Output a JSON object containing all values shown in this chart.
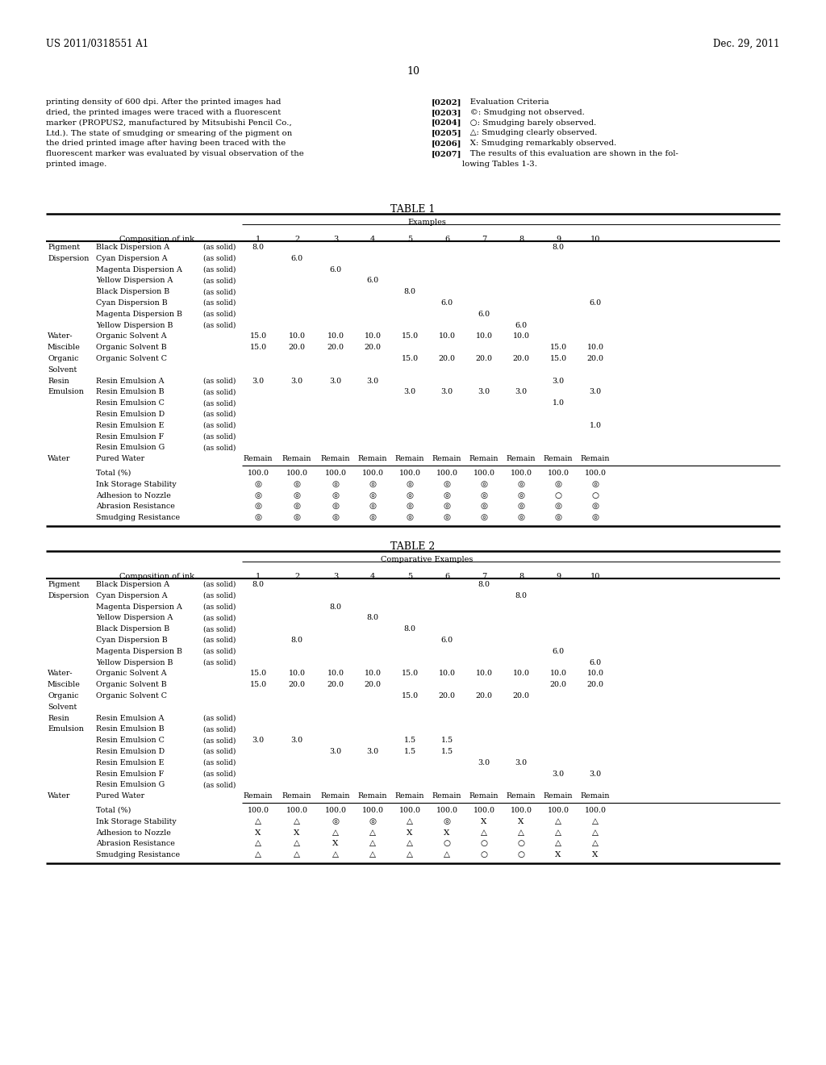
{
  "header_left": "US 2011/0318551 A1",
  "header_right": "Dec. 29, 2011",
  "page_number": "10",
  "body_text_left": "printing density of 600 dpi. After the printed images had\ndried, the printed images were traced with a fluorescent\nmarker (PROPUS2, manufactured by Mitsubishi Pencil Co.,\nLtd.). The state of smudging or smearing of the pigment on\nthe dried printed image after having been traced with the\nfluorescent marker was evaluated by visual observation of the\nprinted image.",
  "body_text_right": "[0202]   Evaluation Criteria\n[0203]   ©: Smudging not observed.\n[0204]   ○: Smudging barely observed.\n[0205]   △: Smudging clearly observed.\n[0206]   X: Smudging remarkably observed.\n[0207]   The results of this evaluation are shown in the fol-\nlowing Tables 1-3.",
  "table1_title": "TABLE 1",
  "table2_title": "TABLE 2",
  "background_color": "#ffffff",
  "text_color": "#000000",
  "t1_rows": [
    [
      "Pigment",
      "Black Dispersion A",
      "(as solid)",
      [
        8.0,
        null,
        null,
        null,
        null,
        null,
        null,
        null,
        8.0,
        null
      ]
    ],
    [
      "Dispersion",
      "Cyan Dispersion A",
      "(as solid)",
      [
        null,
        6.0,
        null,
        null,
        null,
        null,
        null,
        null,
        null,
        null
      ]
    ],
    [
      "",
      "Magenta Dispersion A",
      "(as solid)",
      [
        null,
        null,
        6.0,
        null,
        null,
        null,
        null,
        null,
        null,
        null
      ]
    ],
    [
      "",
      "Yellow Dispersion A",
      "(as solid)",
      [
        null,
        null,
        null,
        6.0,
        null,
        null,
        null,
        null,
        null,
        null
      ]
    ],
    [
      "",
      "Black Dispersion B",
      "(as solid)",
      [
        null,
        null,
        null,
        null,
        8.0,
        null,
        null,
        null,
        null,
        null
      ]
    ],
    [
      "",
      "Cyan Dispersion B",
      "(as solid)",
      [
        null,
        null,
        null,
        null,
        null,
        6.0,
        null,
        null,
        null,
        6.0
      ]
    ],
    [
      "",
      "Magenta Dispersion B",
      "(as solid)",
      [
        null,
        null,
        null,
        null,
        null,
        null,
        6.0,
        null,
        null,
        null
      ]
    ],
    [
      "",
      "Yellow Dispersion B",
      "(as solid)",
      [
        null,
        null,
        null,
        null,
        null,
        null,
        null,
        6.0,
        null,
        null
      ]
    ],
    [
      "Water-",
      "Organic Solvent A",
      "",
      [
        15.0,
        10.0,
        10.0,
        10.0,
        15.0,
        10.0,
        10.0,
        10.0,
        null,
        null
      ]
    ],
    [
      "Miscible",
      "Organic Solvent B",
      "",
      [
        15.0,
        20.0,
        20.0,
        20.0,
        null,
        null,
        null,
        null,
        15.0,
        10.0
      ]
    ],
    [
      "Organic",
      "Organic Solvent C",
      "",
      [
        null,
        null,
        null,
        null,
        15.0,
        20.0,
        20.0,
        20.0,
        15.0,
        20.0
      ]
    ],
    [
      "Solvent",
      "",
      "",
      [
        null,
        null,
        null,
        null,
        null,
        null,
        null,
        null,
        null,
        null
      ]
    ],
    [
      "Resin",
      "Resin Emulsion A",
      "(as solid)",
      [
        3.0,
        3.0,
        3.0,
        3.0,
        null,
        null,
        null,
        null,
        3.0,
        null
      ]
    ],
    [
      "Emulsion",
      "Resin Emulsion B",
      "(as solid)",
      [
        null,
        null,
        null,
        null,
        3.0,
        3.0,
        3.0,
        3.0,
        null,
        3.0
      ]
    ],
    [
      "",
      "Resin Emulsion C",
      "(as solid)",
      [
        null,
        null,
        null,
        null,
        null,
        null,
        null,
        null,
        1.0,
        null
      ]
    ],
    [
      "",
      "Resin Emulsion D",
      "(as solid)",
      [
        null,
        null,
        null,
        null,
        null,
        null,
        null,
        null,
        null,
        null
      ]
    ],
    [
      "",
      "Resin Emulsion E",
      "(as solid)",
      [
        null,
        null,
        null,
        null,
        null,
        null,
        null,
        null,
        null,
        1.0
      ]
    ],
    [
      "",
      "Resin Emulsion F",
      "(as solid)",
      [
        null,
        null,
        null,
        null,
        null,
        null,
        null,
        null,
        null,
        null
      ]
    ],
    [
      "",
      "Resin Emulsion G",
      "(as solid)",
      [
        null,
        null,
        null,
        null,
        null,
        null,
        null,
        null,
        null,
        null
      ]
    ],
    [
      "Water",
      "Pured Water",
      "",
      [
        "R",
        "R",
        "R",
        "R",
        "R",
        "R",
        "R",
        "R",
        "R",
        "R"
      ]
    ]
  ],
  "t1_bot": [
    [
      "Total (%)",
      [
        "100.0",
        "100.0",
        "100.0",
        "100.0",
        "100.0",
        "100.0",
        "100.0",
        "100.0",
        "100.0",
        "100.0"
      ]
    ],
    [
      "Ink Storage Stability",
      [
        "c",
        "c",
        "c",
        "c",
        "c",
        "c",
        "c",
        "c",
        "c",
        "c"
      ]
    ],
    [
      "Adhesion to Nozzle",
      [
        "c",
        "c",
        "c",
        "c",
        "c",
        "c",
        "c",
        "c",
        "o",
        "o"
      ]
    ],
    [
      "Abrasion Resistance",
      [
        "c",
        "c",
        "c",
        "c",
        "c",
        "c",
        "c",
        "c",
        "c",
        "c"
      ]
    ],
    [
      "Smudging Resistance",
      [
        "c",
        "c",
        "c",
        "c",
        "c",
        "c",
        "c",
        "c",
        "c",
        "c"
      ]
    ]
  ],
  "t2_rows": [
    [
      "Pigment",
      "Black Dispersion A",
      "(as solid)",
      [
        8.0,
        null,
        null,
        null,
        null,
        null,
        8.0,
        null,
        null,
        null
      ]
    ],
    [
      "Dispersion",
      "Cyan Dispersion A",
      "(as solid)",
      [
        null,
        null,
        null,
        null,
        null,
        null,
        null,
        8.0,
        null,
        null
      ]
    ],
    [
      "",
      "Magenta Dispersion A",
      "(as solid)",
      [
        null,
        null,
        8.0,
        null,
        null,
        null,
        null,
        null,
        null,
        null
      ]
    ],
    [
      "",
      "Yellow Dispersion A",
      "(as solid)",
      [
        null,
        null,
        null,
        8.0,
        null,
        null,
        null,
        null,
        null,
        null
      ]
    ],
    [
      "",
      "Black Dispersion B",
      "(as solid)",
      [
        null,
        null,
        null,
        null,
        8.0,
        null,
        null,
        null,
        null,
        null
      ]
    ],
    [
      "",
      "Cyan Dispersion B",
      "(as solid)",
      [
        null,
        8.0,
        null,
        null,
        null,
        6.0,
        null,
        null,
        null,
        null
      ]
    ],
    [
      "",
      "Magenta Dispersion B",
      "(as solid)",
      [
        null,
        null,
        null,
        null,
        null,
        null,
        null,
        null,
        6.0,
        null
      ]
    ],
    [
      "",
      "Yellow Dispersion B",
      "(as solid)",
      [
        null,
        null,
        null,
        null,
        null,
        null,
        null,
        null,
        null,
        6.0
      ]
    ],
    [
      "Water-",
      "Organic Solvent A",
      "",
      [
        15.0,
        10.0,
        10.0,
        10.0,
        15.0,
        10.0,
        10.0,
        10.0,
        10.0,
        10.0
      ]
    ],
    [
      "Miscible",
      "Organic Solvent B",
      "",
      [
        15.0,
        20.0,
        20.0,
        20.0,
        null,
        null,
        null,
        null,
        20.0,
        20.0
      ]
    ],
    [
      "Organic",
      "Organic Solvent C",
      "",
      [
        null,
        null,
        null,
        null,
        15.0,
        20.0,
        20.0,
        20.0,
        null,
        null
      ]
    ],
    [
      "Solvent",
      "",
      "",
      [
        null,
        null,
        null,
        null,
        null,
        null,
        null,
        null,
        null,
        null
      ]
    ],
    [
      "Resin",
      "Resin Emulsion A",
      "(as solid)",
      [
        null,
        null,
        null,
        null,
        null,
        null,
        null,
        null,
        null,
        null
      ]
    ],
    [
      "Emulsion",
      "Resin Emulsion B",
      "(as solid)",
      [
        null,
        null,
        null,
        null,
        null,
        null,
        null,
        null,
        null,
        null
      ]
    ],
    [
      "",
      "Resin Emulsion C",
      "(as solid)",
      [
        3.0,
        3.0,
        null,
        null,
        1.5,
        1.5,
        null,
        null,
        null,
        null
      ]
    ],
    [
      "",
      "Resin Emulsion D",
      "(as solid)",
      [
        null,
        null,
        3.0,
        3.0,
        1.5,
        1.5,
        null,
        null,
        null,
        null
      ]
    ],
    [
      "",
      "Resin Emulsion E",
      "(as solid)",
      [
        null,
        null,
        null,
        null,
        null,
        null,
        3.0,
        3.0,
        null,
        null
      ]
    ],
    [
      "",
      "Resin Emulsion F",
      "(as solid)",
      [
        null,
        null,
        null,
        null,
        null,
        null,
        null,
        null,
        3.0,
        3.0
      ]
    ],
    [
      "",
      "Resin Emulsion G",
      "(as solid)",
      [
        null,
        null,
        null,
        null,
        null,
        null,
        null,
        null,
        null,
        null
      ]
    ],
    [
      "Water",
      "Pured Water",
      "",
      [
        "R",
        "R",
        "R",
        "R",
        "R",
        "R",
        "R",
        "R",
        "R",
        "R"
      ]
    ]
  ],
  "t2_bot": [
    [
      "Total (%)",
      [
        "100.0",
        "100.0",
        "100.0",
        "100.0",
        "100.0",
        "100.0",
        "100.0",
        "100.0",
        "100.0",
        "100.0"
      ]
    ],
    [
      "Ink Storage Stability",
      [
        "t",
        "t",
        "c",
        "c",
        "t",
        "c",
        "X",
        "X",
        "t",
        "t"
      ]
    ],
    [
      "Adhesion to Nozzle",
      [
        "X",
        "X",
        "t",
        "t",
        "X",
        "X",
        "t",
        "t",
        "t",
        "t"
      ]
    ],
    [
      "Abrasion Resistance",
      [
        "t",
        "t",
        "X",
        "t",
        "t",
        "o",
        "o",
        "o",
        "t",
        "t"
      ]
    ],
    [
      "Smudging Resistance",
      [
        "t",
        "t",
        "t",
        "t",
        "t",
        "t",
        "o",
        "o",
        "X",
        "X"
      ]
    ]
  ]
}
